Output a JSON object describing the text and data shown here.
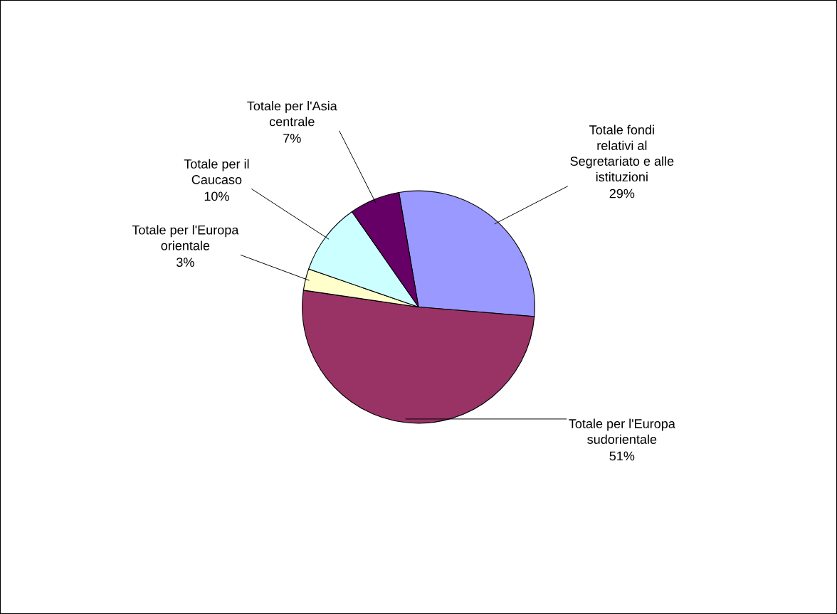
{
  "chart_data": {
    "type": "pie",
    "categories": [
      "Totale fondi\nrelativi al\nSegretariato e alle\nistituzioni",
      "Totale per l'Europa\nsudorientale",
      "Totale per l'Europa\norientale",
      "Totale per il\nCaucaso",
      "Totale per l'Asia\ncentrale"
    ],
    "values": [
      29,
      51,
      3,
      10,
      7
    ],
    "value_labels": [
      "29%",
      "51%",
      "3%",
      "10%",
      "7%"
    ],
    "colors": [
      "#9999ff",
      "#993366",
      "#ffffcc",
      "#ccffff",
      "#660066"
    ]
  }
}
